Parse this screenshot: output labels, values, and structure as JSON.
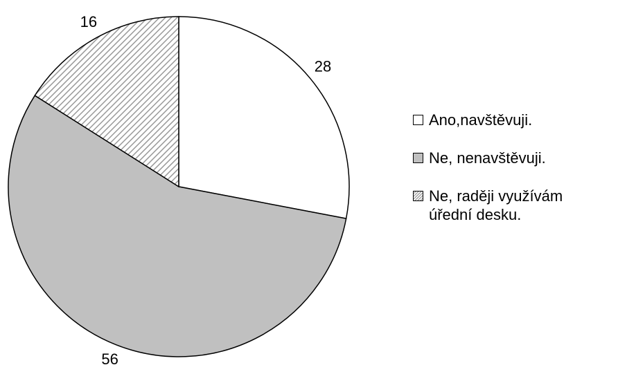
{
  "chart_data": {
    "type": "pie",
    "categories": [
      "Ano,navštěvuji.",
      "Ne, nenavštěvuji.",
      "Ne, raději využívám úřední desku."
    ],
    "values": [
      28,
      56,
      16
    ],
    "colors": [
      "#ffffff",
      "#c0c0c0",
      "#ffffff"
    ],
    "hatch": [
      false,
      false,
      true
    ],
    "legend": "right"
  }
}
